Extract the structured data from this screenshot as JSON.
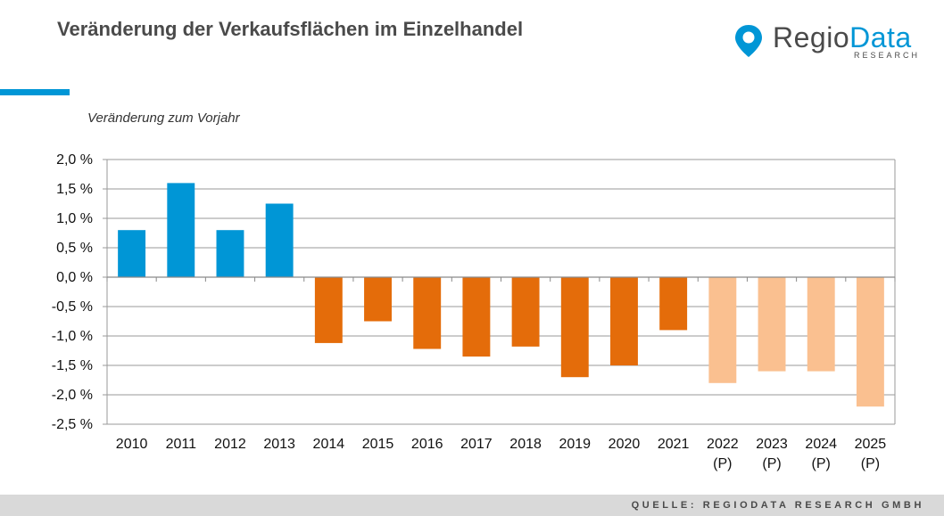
{
  "header": {
    "title": "Veränderung der Verkaufsflächen im Einzelhandel",
    "accent_color": "#0096d6"
  },
  "logo": {
    "name_part1": "Regio",
    "name_part2": "Data",
    "sub": "RESEARCH",
    "icon": "map-pin-icon",
    "accent_color": "#0096d6"
  },
  "footer": {
    "source": "QUELLE: REGIODATA RESEARCH GMBH"
  },
  "chart_data": {
    "type": "bar",
    "subtitle": "Veränderung zum Vorjahr",
    "categories": [
      "2010",
      "2011",
      "2012",
      "2013",
      "2014",
      "2015",
      "2016",
      "2017",
      "2018",
      "2019",
      "2020",
      "2021",
      "2022\n(P)",
      "2023\n(P)",
      "2024\n(P)",
      "2025\n(P)"
    ],
    "values": [
      0.8,
      1.6,
      0.8,
      1.25,
      -1.12,
      -0.75,
      -1.22,
      -1.35,
      -1.18,
      -1.7,
      -1.5,
      -0.9,
      -1.8,
      -1.6,
      -1.6,
      -2.2
    ],
    "ylim": [
      -2.5,
      2.0
    ],
    "yticks": [
      2.0,
      1.5,
      1.0,
      0.5,
      0.0,
      -0.5,
      -1.0,
      -1.5,
      -2.0,
      -2.5
    ],
    "ytick_labels": [
      "2,0 %",
      "1,5 %",
      "1,0 %",
      "0,5 %",
      "0,0 %",
      "-0,5 %",
      "-1,0 %",
      "-1,5 %",
      "-2,0 %",
      "-2,5 %"
    ],
    "grid": true,
    "colors": {
      "positive": "#0096d6",
      "negative": "#e46c0a",
      "forecast": "#fac090"
    },
    "forecast_from_index": 12
  }
}
